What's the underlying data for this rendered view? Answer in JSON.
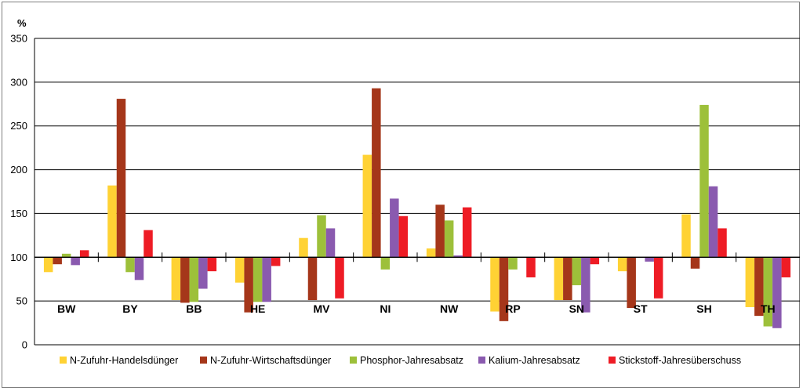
{
  "chart_data": {
    "type": "bar",
    "ylabel": "%",
    "ylim": [
      0,
      350
    ],
    "yticks": [
      0,
      50,
      100,
      150,
      200,
      250,
      300,
      350
    ],
    "baseline": 100,
    "grid": true,
    "legend_position": "bottom",
    "categories": [
      "BW",
      "BY",
      "BB",
      "HE",
      "MV",
      "NI",
      "NW",
      "RP",
      "SN",
      "ST",
      "SH",
      "TH"
    ],
    "series": [
      {
        "name": "N-Zufuhr-Handelsdünger",
        "color": "#FFD234",
        "values": [
          83,
          182,
          51,
          71,
          122,
          217,
          110,
          38,
          51,
          84,
          149,
          43
        ]
      },
      {
        "name": "N-Zufuhr-Wirtschaftsdünger",
        "color": "#A5361A",
        "values": [
          92,
          281,
          48,
          37,
          51,
          293,
          160,
          27,
          51,
          42,
          87,
          33
        ]
      },
      {
        "name": "Phosphor-Jahresabsatz",
        "color": "#9DC03A",
        "values": [
          104,
          83,
          49,
          49,
          148,
          86,
          142,
          86,
          68,
          100,
          274,
          21
        ]
      },
      {
        "name": "Kalium-Jahresabsatz",
        "color": "#8A5AAF",
        "values": [
          91,
          74,
          64,
          49,
          133,
          167,
          102,
          100,
          37,
          95,
          181,
          19
        ]
      },
      {
        "name": "Stickstoff-Jahresüberschuss",
        "color": "#EE1C25",
        "values": [
          108,
          131,
          84,
          90,
          53,
          147,
          157,
          77,
          92,
          53,
          133,
          77
        ]
      }
    ]
  }
}
